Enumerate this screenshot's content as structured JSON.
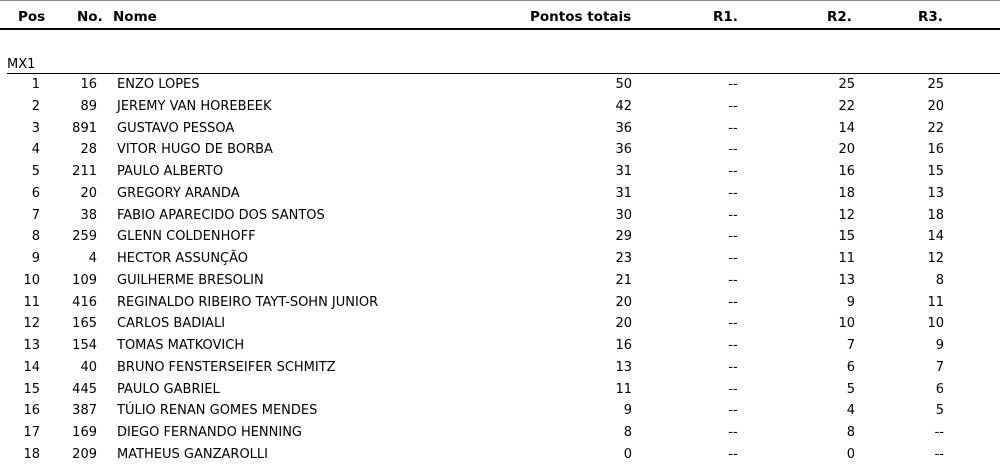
{
  "headers": {
    "pos": "Pos",
    "no": "No.",
    "name": "Nome",
    "total": "Pontos totais",
    "r1": "R1.",
    "r2": "R2.",
    "r3": "R3."
  },
  "category": "MX1",
  "rows": [
    {
      "pos": "1",
      "no": "16",
      "name": "ENZO LOPES",
      "total": "50",
      "r1": "--",
      "r2": "25",
      "r3": "25"
    },
    {
      "pos": "2",
      "no": "89",
      "name": "JEREMY VAN HOREBEEK",
      "total": "42",
      "r1": "--",
      "r2": "22",
      "r3": "20"
    },
    {
      "pos": "3",
      "no": "891",
      "name": "GUSTAVO PESSOA",
      "total": "36",
      "r1": "--",
      "r2": "14",
      "r3": "22"
    },
    {
      "pos": "4",
      "no": "28",
      "name": "VITOR HUGO DE BORBA",
      "total": "36",
      "r1": "--",
      "r2": "20",
      "r3": "16"
    },
    {
      "pos": "5",
      "no": "211",
      "name": "PAULO ALBERTO",
      "total": "31",
      "r1": "--",
      "r2": "16",
      "r3": "15"
    },
    {
      "pos": "6",
      "no": "20",
      "name": "GREGORY ARANDA",
      "total": "31",
      "r1": "--",
      "r2": "18",
      "r3": "13"
    },
    {
      "pos": "7",
      "no": "38",
      "name": "FABIO APARECIDO DOS SANTOS",
      "total": "30",
      "r1": "--",
      "r2": "12",
      "r3": "18"
    },
    {
      "pos": "8",
      "no": "259",
      "name": "GLENN COLDENHOFF",
      "total": "29",
      "r1": "--",
      "r2": "15",
      "r3": "14"
    },
    {
      "pos": "9",
      "no": "4",
      "name": "HECTOR ASSUNÇÃO",
      "total": "23",
      "r1": "--",
      "r2": "11",
      "r3": "12"
    },
    {
      "pos": "10",
      "no": "109",
      "name": "GUILHERME BRESOLIN",
      "total": "21",
      "r1": "--",
      "r2": "13",
      "r3": "8"
    },
    {
      "pos": "11",
      "no": "416",
      "name": "REGINALDO RIBEIRO TAYT-SOHN JUNIOR",
      "total": "20",
      "r1": "--",
      "r2": "9",
      "r3": "11"
    },
    {
      "pos": "12",
      "no": "165",
      "name": "CARLOS BADIALI",
      "total": "20",
      "r1": "--",
      "r2": "10",
      "r3": "10"
    },
    {
      "pos": "13",
      "no": "154",
      "name": "TOMAS MATKOVICH",
      "total": "16",
      "r1": "--",
      "r2": "7",
      "r3": "9"
    },
    {
      "pos": "14",
      "no": "40",
      "name": "BRUNO FENSTERSEIFER SCHMITZ",
      "total": "13",
      "r1": "--",
      "r2": "6",
      "r3": "7"
    },
    {
      "pos": "15",
      "no": "445",
      "name": "PAULO GABRIEL",
      "total": "11",
      "r1": "--",
      "r2": "5",
      "r3": "6"
    },
    {
      "pos": "16",
      "no": "387",
      "name": "TÚLIO RENAN GOMES MENDES",
      "total": "9",
      "r1": "--",
      "r2": "4",
      "r3": "5"
    },
    {
      "pos": "17",
      "no": "169",
      "name": "DIEGO FERNANDO HENNING",
      "total": "8",
      "r1": "--",
      "r2": "8",
      "r3": "--"
    },
    {
      "pos": "18",
      "no": "209",
      "name": "MATHEUS GANZAROLLI",
      "total": "0",
      "r1": "--",
      "r2": "0",
      "r3": "--"
    }
  ]
}
